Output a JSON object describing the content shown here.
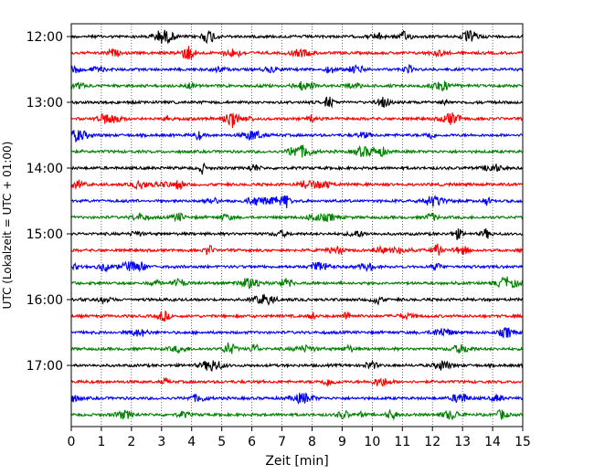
{
  "chart_data": {
    "type": "line",
    "title": "",
    "xlabel": "Zeit  [min]",
    "ylabel": "UTC (Lokalzeit = UTC + 01:00)",
    "xlim": [
      0,
      15
    ],
    "x_ticks": [
      "0",
      "1",
      "2",
      "3",
      "4",
      "5",
      "6",
      "7",
      "8",
      "9",
      "10",
      "11",
      "12",
      "13",
      "14",
      "15"
    ],
    "y_ticks": [
      "12:00",
      "13:00",
      "14:00",
      "15:00",
      "16:00",
      "17:00"
    ],
    "grid": "vertical dotted",
    "trace_interval_min": 15,
    "trace_colors": [
      "#000000",
      "#ff0000",
      "#0000ff",
      "#008000"
    ],
    "traces": [
      {
        "start": "12:00",
        "color": "#000000"
      },
      {
        "start": "12:15",
        "color": "#ff0000"
      },
      {
        "start": "12:30",
        "color": "#0000ff"
      },
      {
        "start": "12:45",
        "color": "#008000"
      },
      {
        "start": "13:00",
        "color": "#000000"
      },
      {
        "start": "13:15",
        "color": "#ff0000"
      },
      {
        "start": "13:30",
        "color": "#0000ff"
      },
      {
        "start": "13:45",
        "color": "#008000"
      },
      {
        "start": "14:00",
        "color": "#000000"
      },
      {
        "start": "14:15",
        "color": "#ff0000"
      },
      {
        "start": "14:30",
        "color": "#0000ff"
      },
      {
        "start": "14:45",
        "color": "#008000"
      },
      {
        "start": "15:00",
        "color": "#000000"
      },
      {
        "start": "15:15",
        "color": "#ff0000"
      },
      {
        "start": "15:30",
        "color": "#0000ff"
      },
      {
        "start": "15:45",
        "color": "#008000"
      },
      {
        "start": "16:00",
        "color": "#000000"
      },
      {
        "start": "16:15",
        "color": "#ff0000"
      },
      {
        "start": "16:30",
        "color": "#0000ff"
      },
      {
        "start": "16:45",
        "color": "#008000"
      },
      {
        "start": "17:00",
        "color": "#000000"
      },
      {
        "start": "17:15",
        "color": "#ff0000"
      },
      {
        "start": "17:30",
        "color": "#0000ff"
      },
      {
        "start": "17:45",
        "color": "#008000"
      }
    ]
  }
}
